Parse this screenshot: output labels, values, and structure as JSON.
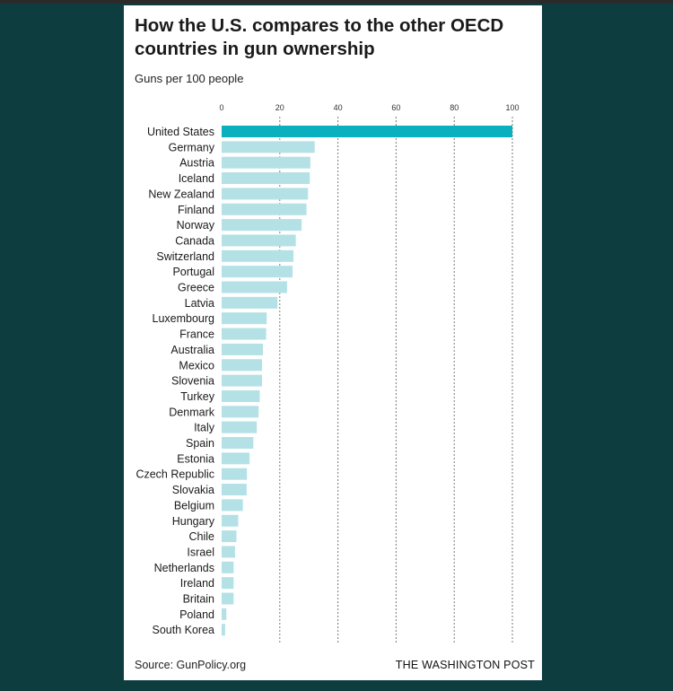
{
  "title": "How the U.S. compares to the other OECD countries in gun ownership",
  "subtitle": "Guns per 100 people",
  "source": "Source: GunPolicy.org",
  "brand": "THE WASHINGTON POST",
  "colors": {
    "highlight": "#0ab0be",
    "bar": "#b3e1e6",
    "grid": "#7a7a7a",
    "background": "#0e3d3f"
  },
  "chart_data": {
    "type": "bar",
    "orientation": "horizontal",
    "title": "How the U.S. compares to the other OECD countries in gun ownership",
    "xlabel": "Guns per 100 people",
    "ylabel": "",
    "xlim": [
      0,
      100
    ],
    "xticks": [
      0,
      20,
      40,
      60,
      80,
      100
    ],
    "grid": true,
    "highlighted_category": "United States",
    "categories": [
      "United States",
      "Germany",
      "Austria",
      "Iceland",
      "New Zealand",
      "Finland",
      "Norway",
      "Canada",
      "Switzerland",
      "Portugal",
      "Greece",
      "Latvia",
      "Luxembourg",
      "France",
      "Australia",
      "Mexico",
      "Slovenia",
      "Turkey",
      "Denmark",
      "Italy",
      "Spain",
      "Estonia",
      "Czech Republic",
      "Slovakia",
      "Belgium",
      "Hungary",
      "Chile",
      "Israel",
      "Netherlands",
      "Ireland",
      "Britain",
      "Poland",
      "South Korea"
    ],
    "values": [
      101,
      32,
      30.5,
      30.3,
      29.7,
      29.2,
      27.5,
      25.5,
      24.7,
      24.4,
      22.5,
      19.2,
      15.5,
      15.3,
      14.2,
      13.9,
      13.9,
      13.1,
      12.7,
      12.1,
      10.9,
      9.6,
      8.7,
      8.6,
      7.3,
      5.7,
      5.1,
      4.6,
      4.1,
      4.1,
      4.1,
      1.6,
      1.2
    ]
  }
}
